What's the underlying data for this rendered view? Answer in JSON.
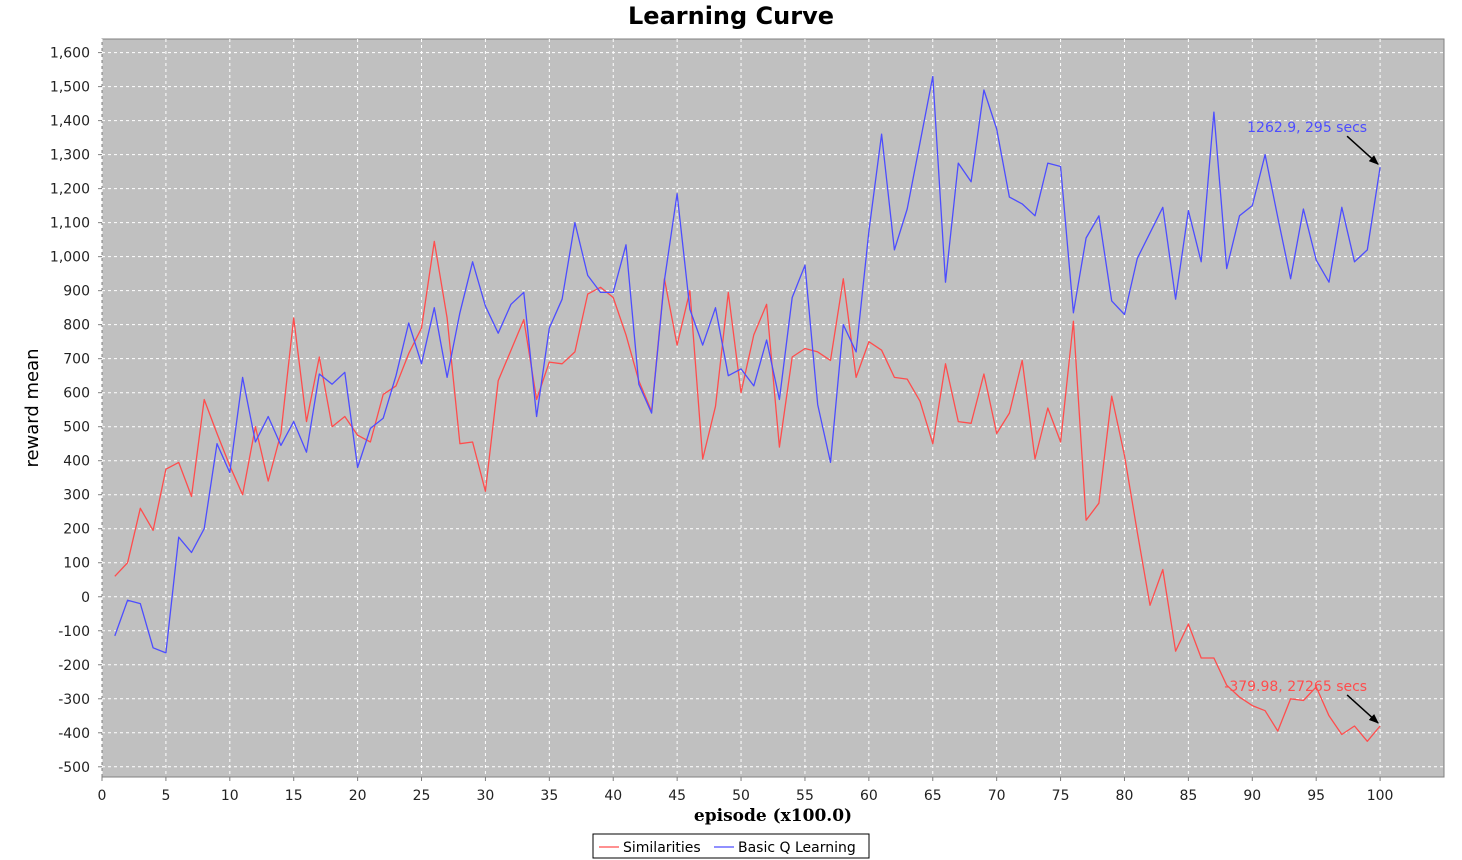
{
  "chart_data": {
    "type": "line",
    "title": "Learning Curve",
    "xlabel": "episode (x100.0)",
    "ylabel": "reward mean",
    "xlim": [
      0,
      105
    ],
    "ylim": [
      -530,
      1640
    ],
    "x_ticks": [
      0,
      5,
      10,
      15,
      20,
      25,
      30,
      35,
      40,
      45,
      50,
      55,
      60,
      65,
      70,
      75,
      80,
      85,
      90,
      95,
      100
    ],
    "x_tick_labels": [
      "0",
      "5",
      "10",
      "15",
      "20",
      "25",
      "30",
      "35",
      "40",
      "45",
      "50",
      "55",
      "60",
      "65",
      "70",
      "75",
      "80",
      "85",
      "90",
      "95",
      "100"
    ],
    "y_ticks": [
      -500,
      -400,
      -300,
      -200,
      -100,
      0,
      100,
      200,
      300,
      400,
      500,
      600,
      700,
      800,
      900,
      1000,
      1100,
      1200,
      1300,
      1400,
      1500,
      1600
    ],
    "y_tick_labels": [
      "-500",
      "-400",
      "-300",
      "-200",
      "-100",
      "0",
      "100",
      "200",
      "300",
      "400",
      "500",
      "600",
      "700",
      "800",
      "900",
      "1,000",
      "1,100",
      "1,200",
      "1,300",
      "1,400",
      "1,500",
      "1,600"
    ],
    "grid": true,
    "legend_position": "bottom-center",
    "series": [
      {
        "name": "Similarities",
        "color": "#ff4d4d",
        "values": [
          60,
          100,
          260,
          195,
          375,
          395,
          295,
          580,
          480,
          385,
          300,
          500,
          340,
          480,
          820,
          515,
          705,
          500,
          530,
          475,
          455,
          595,
          620,
          715,
          790,
          1045,
          820,
          450,
          455,
          310,
          635,
          725,
          815,
          580,
          690,
          685,
          720,
          890,
          910,
          880,
          770,
          635,
          545,
          935,
          740,
          900,
          405,
          560,
          895,
          600,
          770,
          860,
          440,
          705,
          730,
          720,
          695,
          935,
          645,
          750,
          725,
          645,
          640,
          575,
          450,
          685,
          515,
          510,
          655,
          480,
          540,
          695,
          405,
          555,
          455,
          810,
          225,
          275,
          590,
          415,
          190,
          -25,
          80,
          -160,
          -80,
          -180,
          -180,
          -260,
          -295,
          -320,
          -335,
          -395,
          -300,
          -305,
          -265,
          -350,
          -405,
          -380,
          -425,
          -380
        ]
      },
      {
        "name": "Basic Q Learning",
        "color": "#4d4dff",
        "values": [
          -115,
          -10,
          -20,
          -150,
          -165,
          175,
          130,
          200,
          450,
          365,
          645,
          455,
          530,
          445,
          515,
          425,
          655,
          625,
          660,
          380,
          495,
          525,
          650,
          805,
          685,
          850,
          645,
          835,
          985,
          855,
          775,
          860,
          895,
          530,
          790,
          875,
          1100,
          945,
          895,
          895,
          1035,
          625,
          540,
          930,
          1185,
          845,
          740,
          850,
          650,
          670,
          620,
          755,
          580,
          880,
          975,
          565,
          395,
          800,
          720,
          1075,
          1360,
          1020,
          1140,
          1335,
          1530,
          925,
          1275,
          1220,
          1490,
          1375,
          1175,
          1155,
          1120,
          1275,
          1265,
          835,
          1055,
          1120,
          870,
          830,
          995,
          1070,
          1145,
          875,
          1135,
          985,
          1425,
          965,
          1120,
          1150,
          1300,
          1115,
          935,
          1140,
          990,
          925,
          1145,
          985,
          1020,
          1263
        ]
      }
    ],
    "annotations": [
      {
        "text": "1262.9, 295 secs",
        "x": 100,
        "y": 1263,
        "series": "Basic Q Learning",
        "color": "#4d4dff"
      },
      {
        "text": "-379.98, 27265 secs",
        "x": 100,
        "y": -380,
        "series": "Similarities",
        "color": "#ff4d4d"
      }
    ]
  }
}
